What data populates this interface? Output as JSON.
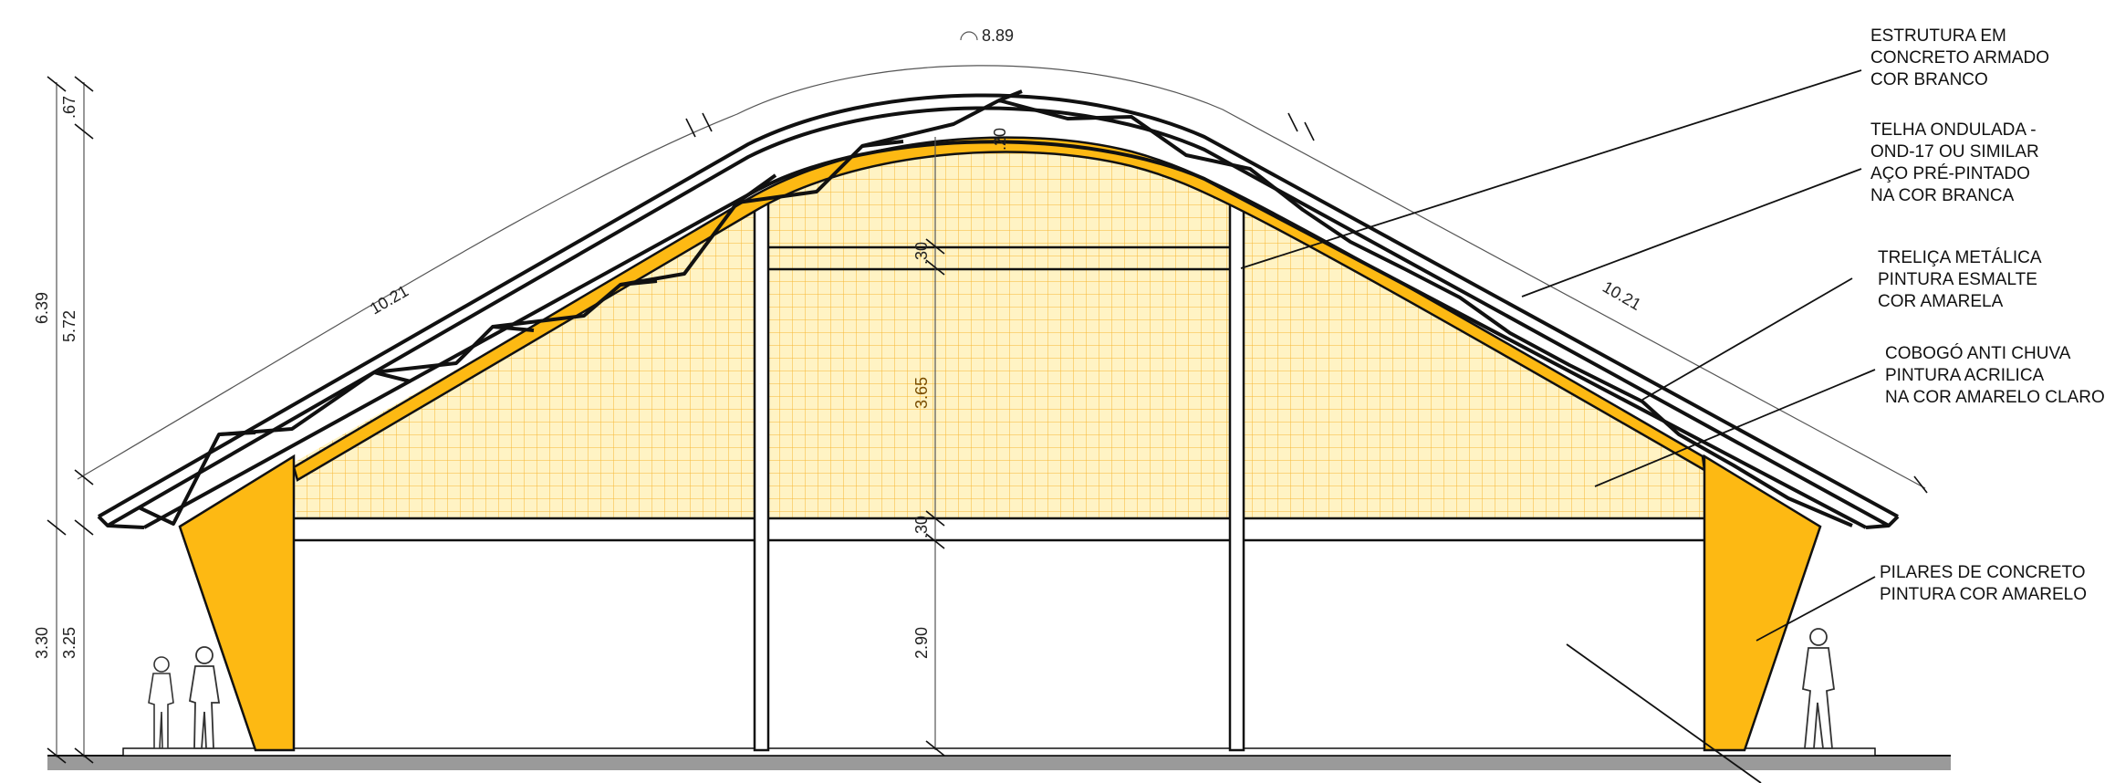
{
  "colors": {
    "structure_yellow": "#fdb913",
    "cobogo_yellow": "#fff3c4",
    "cobogo_grid": "#f7b733",
    "ink": "#111111",
    "ground": "#9a9a9a"
  },
  "dimensions": {
    "arc_length": "8.89",
    "slope_left": "10.21",
    "slope_right": "10.21",
    "total_height": "6.39",
    "roof_height": "5.72",
    "top_offset": ".67",
    "base_height": "3.30",
    "column_height": "3.25",
    "arch_thickness": ".20",
    "beam_top": ".30",
    "cobogo_height": "3.65",
    "beam_lower": ".30",
    "opening_height": "2.90"
  },
  "annotations": [
    {
      "lines": [
        "ESTRUTURA EM",
        "CONCRETO ARMADO",
        "COR BRANCO"
      ]
    },
    {
      "lines": [
        "TELHA ONDULADA -",
        "OND-17 OU SIMILAR",
        "AÇO PRÉ-PINTADO",
        "NA COR BRANCA"
      ]
    },
    {
      "lines": [
        "TRELIÇA METÁLICA",
        "PINTURA ESMALTE",
        "COR AMARELA"
      ]
    },
    {
      "lines": [
        "COBOGÓ ANTI CHUVA",
        "PINTURA ACRILICA",
        "NA COR  AMARELO CLARO"
      ]
    },
    {
      "lines": [
        "PILARES DE CONCRETO",
        "PINTURA COR AMARELO"
      ]
    }
  ]
}
